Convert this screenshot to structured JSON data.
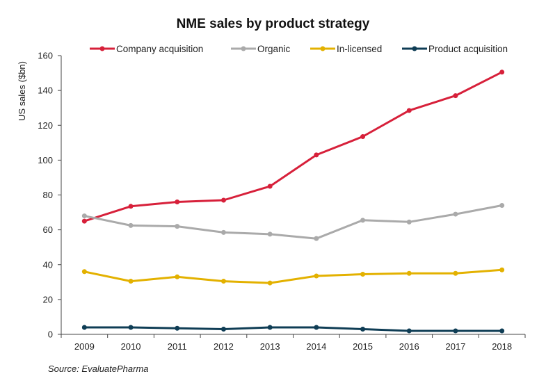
{
  "chart_data": {
    "type": "line",
    "title": "NME sales by product strategy",
    "xlabel": "",
    "ylabel": "US sales ($bn)",
    "x": [
      "2009",
      "2010",
      "2011",
      "2012",
      "2013",
      "2014",
      "2015",
      "2016",
      "2017",
      "2018"
    ],
    "ylim": [
      0,
      160
    ],
    "yticks": [
      0,
      20,
      40,
      60,
      80,
      100,
      120,
      140,
      160
    ],
    "grid": false,
    "legend_position": "top",
    "series": [
      {
        "name": "Company acquisition",
        "color": "#d7203a",
        "values": [
          65,
          73.5,
          76,
          77,
          85,
          103,
          113.5,
          128.5,
          137,
          150.5
        ]
      },
      {
        "name": "Organic",
        "color": "#aaaaaa",
        "values": [
          68,
          62.5,
          62,
          58.5,
          57.5,
          55,
          65.5,
          64.5,
          69,
          74
        ]
      },
      {
        "name": "In-licensed",
        "color": "#e3b100",
        "values": [
          36,
          30.5,
          33,
          30.5,
          29.5,
          33.5,
          34.5,
          35,
          35,
          37
        ]
      },
      {
        "name": "Product acquisition",
        "color": "#0f3d55",
        "values": [
          4,
          4,
          3.5,
          3,
          4,
          4,
          3,
          2,
          2,
          2
        ]
      }
    ]
  },
  "source_text": "Source: EvaluatePharma"
}
